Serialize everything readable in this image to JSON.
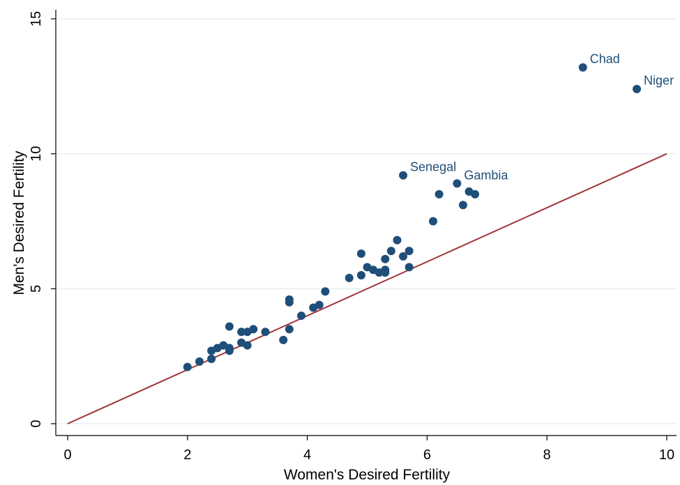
{
  "chart_data": {
    "type": "scatter",
    "xlabel": "Women's Desired Fertility",
    "ylabel": "Men's Desired Fertility",
    "xlim": [
      0,
      10
    ],
    "ylim": [
      0,
      15
    ],
    "x_ticks": [
      "0",
      "2",
      "4",
      "6",
      "8",
      "10"
    ],
    "y_ticks": [
      "0",
      "5",
      "10",
      "15"
    ],
    "grid": "horizontal",
    "colors": {
      "points": "#1f4e79",
      "labels": "#1f4e79",
      "reference_line": "#a0353a",
      "gridlines": "#e6eef2",
      "axes": "#000000"
    },
    "reference_line": {
      "x": [
        0,
        10
      ],
      "y": [
        0,
        10
      ]
    },
    "points": [
      {
        "x": 2.0,
        "y": 2.1
      },
      {
        "x": 2.2,
        "y": 2.3
      },
      {
        "x": 2.4,
        "y": 2.4
      },
      {
        "x": 2.4,
        "y": 2.7
      },
      {
        "x": 2.5,
        "y": 2.8
      },
      {
        "x": 2.6,
        "y": 2.9
      },
      {
        "x": 2.7,
        "y": 2.7
      },
      {
        "x": 2.7,
        "y": 2.8
      },
      {
        "x": 2.7,
        "y": 3.6
      },
      {
        "x": 2.9,
        "y": 3.0
      },
      {
        "x": 2.9,
        "y": 3.4
      },
      {
        "x": 3.0,
        "y": 2.9
      },
      {
        "x": 3.0,
        "y": 3.4
      },
      {
        "x": 3.1,
        "y": 3.5
      },
      {
        "x": 3.3,
        "y": 3.4
      },
      {
        "x": 3.6,
        "y": 3.1
      },
      {
        "x": 3.7,
        "y": 3.5
      },
      {
        "x": 3.7,
        "y": 4.5
      },
      {
        "x": 3.7,
        "y": 4.6
      },
      {
        "x": 3.9,
        "y": 4.0
      },
      {
        "x": 4.1,
        "y": 4.3
      },
      {
        "x": 4.2,
        "y": 4.4
      },
      {
        "x": 4.3,
        "y": 4.9
      },
      {
        "x": 4.7,
        "y": 5.4
      },
      {
        "x": 4.9,
        "y": 5.5
      },
      {
        "x": 4.9,
        "y": 6.3
      },
      {
        "x": 5.0,
        "y": 5.8
      },
      {
        "x": 5.1,
        "y": 5.7
      },
      {
        "x": 5.2,
        "y": 5.6
      },
      {
        "x": 5.3,
        "y": 5.6
      },
      {
        "x": 5.3,
        "y": 5.7
      },
      {
        "x": 5.3,
        "y": 6.1
      },
      {
        "x": 5.4,
        "y": 6.4
      },
      {
        "x": 5.5,
        "y": 6.8
      },
      {
        "x": 5.6,
        "y": 6.2
      },
      {
        "x": 5.7,
        "y": 5.8
      },
      {
        "x": 5.7,
        "y": 6.4
      },
      {
        "x": 6.1,
        "y": 7.5
      },
      {
        "x": 6.2,
        "y": 8.5
      },
      {
        "x": 6.6,
        "y": 8.1
      },
      {
        "x": 6.7,
        "y": 8.6
      },
      {
        "x": 6.8,
        "y": 8.5
      },
      {
        "x": 5.6,
        "y": 9.2,
        "label": "Senegal"
      },
      {
        "x": 6.5,
        "y": 8.9,
        "label": "Gambia"
      },
      {
        "x": 8.6,
        "y": 13.2,
        "label": "Chad"
      },
      {
        "x": 9.5,
        "y": 12.4,
        "label": "Niger"
      }
    ]
  }
}
